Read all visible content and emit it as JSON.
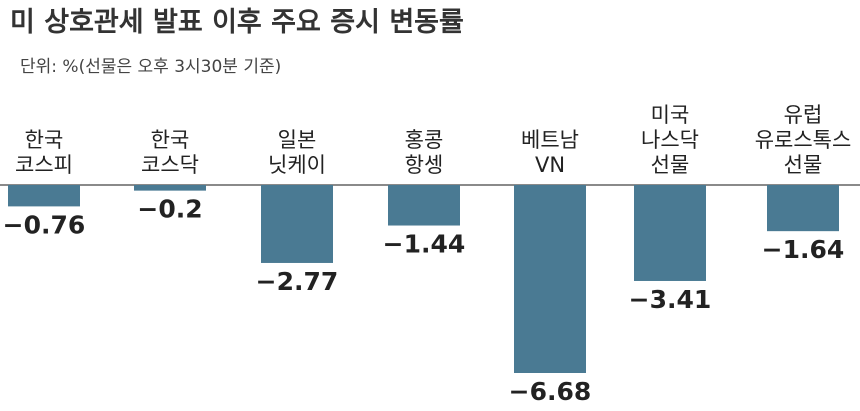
{
  "title": "미 상호관세 발표 이후 주요 증시 변동률",
  "unit_note": "단위: %(선물은 오후 3시30분 기준)",
  "colors": {
    "bar": "#4a7a93",
    "baseline": "#444444"
  },
  "chart_data": {
    "type": "bar",
    "title": "미 상호관세 발표 이후 주요 증시 변동률",
    "categories": [
      [
        "한국",
        "코스피"
      ],
      [
        "한국",
        "코스닥"
      ],
      [
        "일본",
        "닛케이"
      ],
      [
        "홍콩",
        "항셍"
      ],
      [
        "베트남",
        "VN"
      ],
      [
        "미국",
        "나스닥",
        "선물"
      ],
      [
        "유럽",
        "유로스톡스",
        "선물"
      ]
    ],
    "values": [
      -0.76,
      -0.2,
      -2.77,
      -1.44,
      -6.68,
      -3.41,
      -1.64
    ],
    "value_labels": [
      "−0.76",
      "−0.2",
      "−2.77",
      "−1.44",
      "−6.68",
      "−3.41",
      "−1.64"
    ],
    "ylim": [
      -6.68,
      0
    ],
    "grid": false
  }
}
